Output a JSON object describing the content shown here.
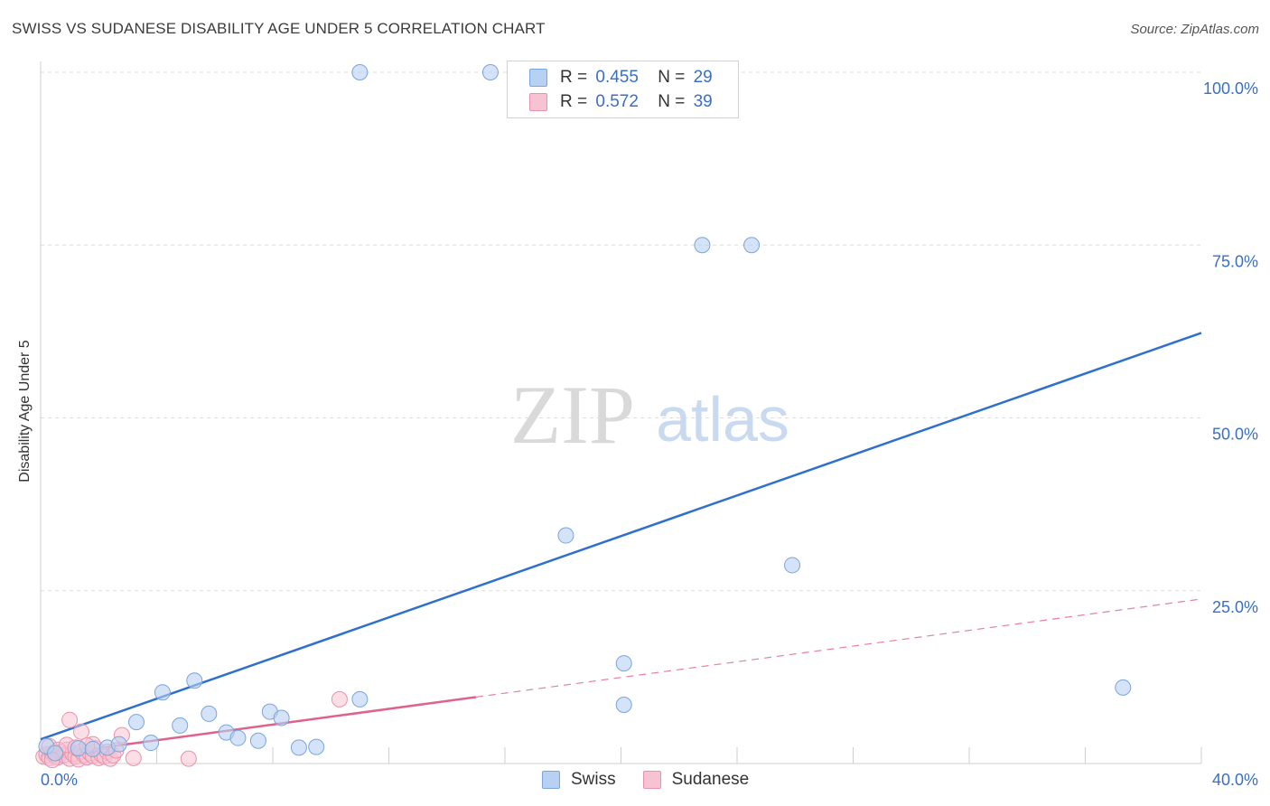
{
  "title": "SWISS VS SUDANESE DISABILITY AGE UNDER 5 CORRELATION CHART",
  "source": "Source: ZipAtlas.com",
  "watermark": {
    "zip": "ZIP",
    "atlas": "atlas"
  },
  "legend": {
    "swiss": {
      "r_label": "R =",
      "r_value": "0.455",
      "n_label": "N =",
      "n_value": "29",
      "name": "Swiss"
    },
    "sudanese": {
      "r_label": "R =",
      "r_value": "0.572",
      "n_label": "N =",
      "n_value": "39",
      "name": "Sudanese"
    }
  },
  "colors": {
    "swiss_fill": "#b7d1f2",
    "swiss_stroke": "#7aa5de",
    "swiss_line": "#2f6fd0",
    "sudanese_fill": "#f7c2d2",
    "sudanese_stroke": "#ea92ad",
    "sudanese_line": "#e0628a",
    "axis_text": "#3a6fc4",
    "grid": "#dddddd"
  },
  "chart_data": {
    "type": "scatter",
    "title": "SWISS VS SUDANESE DISABILITY AGE UNDER 5 CORRELATION CHART",
    "xlabel": "",
    "ylabel": "Disability Age Under 5",
    "xlim": [
      0,
      40
    ],
    "ylim": [
      0,
      100
    ],
    "x_tick_labels": [
      "0.0%",
      "40.0%"
    ],
    "y_ticks": [
      25,
      50,
      75,
      100
    ],
    "y_tick_labels": [
      "25.0%",
      "50.0%",
      "75.0%",
      "100.0%"
    ],
    "series": [
      {
        "name": "Swiss",
        "points": [
          [
            0.2,
            2.5
          ],
          [
            1.3,
            2.2
          ],
          [
            1.8,
            2.1
          ],
          [
            2.3,
            2.3
          ],
          [
            2.7,
            2.8
          ],
          [
            3.3,
            6.0
          ],
          [
            3.8,
            3.0
          ],
          [
            4.2,
            10.3
          ],
          [
            4.8,
            5.5
          ],
          [
            5.3,
            12.0
          ],
          [
            5.8,
            7.2
          ],
          [
            6.4,
            4.5
          ],
          [
            6.8,
            3.7
          ],
          [
            7.5,
            3.3
          ],
          [
            7.9,
            7.5
          ],
          [
            8.3,
            6.6
          ],
          [
            8.9,
            2.3
          ],
          [
            9.5,
            2.4
          ],
          [
            11.0,
            9.3
          ],
          [
            11.0,
            100.0
          ],
          [
            15.5,
            100.0
          ],
          [
            18.1,
            33.0
          ],
          [
            20.1,
            14.5
          ],
          [
            20.1,
            8.5
          ],
          [
            22.8,
            75.0
          ],
          [
            24.5,
            75.0
          ],
          [
            25.9,
            28.7
          ],
          [
            37.3,
            11.0
          ],
          [
            0.5,
            1.5
          ]
        ],
        "trend": {
          "x": [
            0,
            40
          ],
          "y": [
            3.5,
            62.3
          ],
          "style": "solid"
        }
      },
      {
        "name": "Sudanese",
        "points": [
          [
            0.1,
            1.0
          ],
          [
            0.2,
            1.3
          ],
          [
            0.3,
            0.8
          ],
          [
            0.4,
            1.5
          ],
          [
            0.5,
            1.1
          ],
          [
            0.6,
            0.9
          ],
          [
            0.7,
            1.7
          ],
          [
            0.8,
            1.2
          ],
          [
            0.9,
            2.0
          ],
          [
            1.0,
            0.7
          ],
          [
            1.1,
            1.4
          ],
          [
            1.2,
            1.0
          ],
          [
            1.3,
            0.6
          ],
          [
            1.4,
            1.8
          ],
          [
            1.5,
            1.2
          ],
          [
            1.6,
            0.9
          ],
          [
            1.7,
            1.5
          ],
          [
            1.8,
            1.1
          ],
          [
            1.9,
            2.2
          ],
          [
            2.0,
            0.8
          ],
          [
            2.1,
            1.3
          ],
          [
            2.2,
            1.0
          ],
          [
            2.3,
            1.7
          ],
          [
            2.4,
            0.7
          ],
          [
            2.5,
            1.2
          ],
          [
            0.3,
            2.5
          ],
          [
            0.6,
            2.0
          ],
          [
            0.9,
            2.7
          ],
          [
            1.2,
            2.3
          ],
          [
            1.0,
            6.3
          ],
          [
            1.4,
            4.6
          ],
          [
            1.8,
            2.8
          ],
          [
            2.8,
            4.1
          ],
          [
            3.2,
            0.8
          ],
          [
            5.1,
            0.7
          ],
          [
            10.3,
            9.3
          ],
          [
            0.4,
            0.5
          ],
          [
            1.6,
            2.6
          ],
          [
            2.6,
            1.9
          ]
        ],
        "trend": {
          "x": [
            0,
            40
          ],
          "y": [
            1.1,
            23.8
          ],
          "solid_until_x": 15.0
        }
      }
    ]
  }
}
